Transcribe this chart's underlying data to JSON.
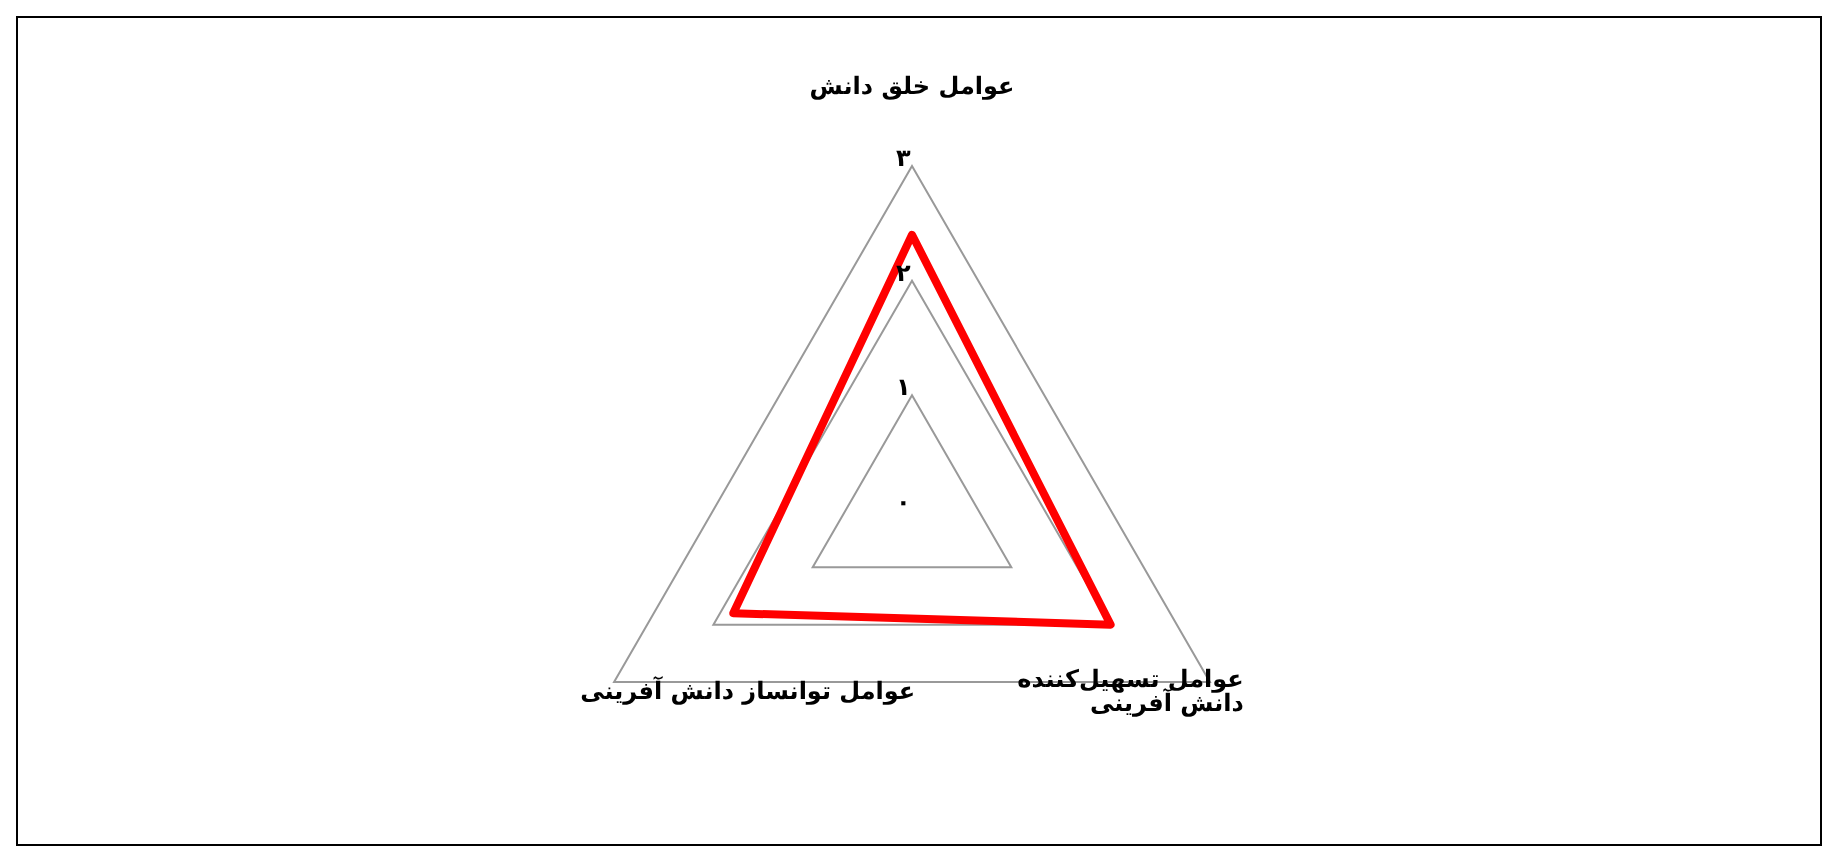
{
  "chart_data": {
    "type": "radar",
    "categories": [
      "عوامل خلق دانش",
      "عوامل تسهیل‌کننده دانش آفرینی",
      "عوامل توانساز دانش آفرینی"
    ],
    "series": [
      {
        "color": "#ff0000",
        "values": [
          2.4,
          2.0,
          1.8
        ]
      }
    ],
    "ylim": [
      0,
      3
    ],
    "yticks": [
      {
        "value": 0,
        "label": "۰"
      },
      {
        "value": 1,
        "label": "۱"
      },
      {
        "value": 2,
        "label": "۲"
      },
      {
        "value": 3,
        "label": "۳"
      }
    ],
    "grid": true
  }
}
